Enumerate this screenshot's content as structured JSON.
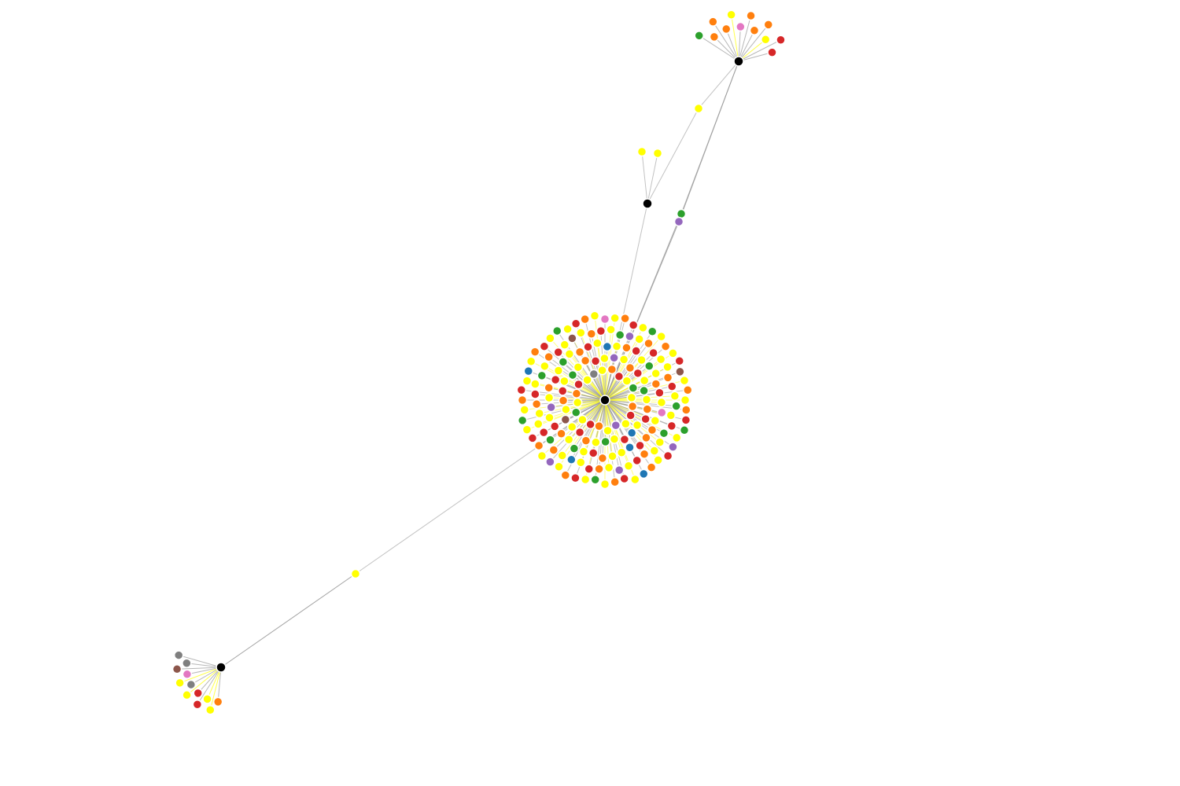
{
  "diagram": {
    "type": "force-directed-network",
    "background": "#ffffff",
    "hub_color": "#000000",
    "link_color": "#999999",
    "highlight_link_color": "#ffff00",
    "palette": {
      "yellow": "#ffff00",
      "orange": "#ff7f0e",
      "red": "#d62728",
      "green": "#2ca02c",
      "blue": "#1f77b4",
      "purple": "#9467bd",
      "pink": "#e377c2",
      "brown": "#8c564b",
      "gray": "#7f7f7f"
    },
    "hubs": [
      {
        "id": "hub-center",
        "leaf_colors": [
          "yellow",
          "orange",
          "red",
          "green",
          "yellow",
          "purple",
          "red",
          "yellow",
          "orange",
          "blue",
          "yellow",
          "red",
          "orange",
          "yellow",
          "green",
          "yellow",
          "red",
          "orange",
          "yellow",
          "purple",
          "yellow",
          "orange",
          "red",
          "yellow",
          "green",
          "yellow",
          "orange",
          "red",
          "yellow",
          "blue",
          "yellow",
          "orange",
          "red",
          "yellow",
          "green",
          "yellow",
          "red",
          "orange",
          "yellow",
          "pink",
          "yellow",
          "orange",
          "red",
          "yellow",
          "green",
          "yellow",
          "orange",
          "yellow",
          "red",
          "brown",
          "yellow",
          "orange",
          "red",
          "green",
          "yellow",
          "yellow",
          "orange",
          "red",
          "yellow",
          "purple",
          "yellow",
          "orange",
          "red",
          "yellow",
          "blue",
          "yellow",
          "orange",
          "green",
          "red",
          "yellow",
          "yellow",
          "orange",
          "red",
          "yellow",
          "green",
          "yellow",
          "orange",
          "red",
          "yellow",
          "brown",
          "yellow",
          "orange",
          "red",
          "yellow",
          "green",
          "purple",
          "yellow",
          "orange",
          "red",
          "yellow",
          "yellow",
          "orange",
          "red",
          "yellow",
          "green",
          "yellow",
          "orange",
          "red",
          "blue",
          "yellow",
          "yellow",
          "orange",
          "red",
          "yellow",
          "green",
          "yellow",
          "orange",
          "red",
          "yellow",
          "purple",
          "yellow",
          "orange",
          "red",
          "yellow",
          "green",
          "yellow",
          "orange",
          "red",
          "yellow",
          "blue",
          "yellow",
          "orange",
          "red",
          "yellow",
          "green",
          "yellow",
          "orange",
          "red",
          "yellow",
          "pink",
          "yellow",
          "orange",
          "red",
          "yellow",
          "green",
          "yellow",
          "orange",
          "red",
          "yellow",
          "brown",
          "yellow",
          "orange",
          "red",
          "yellow",
          "green",
          "yellow",
          "orange",
          "red",
          "yellow",
          "purple",
          "yellow",
          "orange",
          "red",
          "yellow",
          "green",
          "yellow",
          "orange",
          "red",
          "yellow",
          "blue",
          "yellow",
          "orange",
          "red",
          "yellow",
          "green",
          "yellow",
          "orange",
          "red",
          "yellow",
          "gray",
          "yellow",
          "orange",
          "red",
          "yellow",
          "green",
          "yellow",
          "orange",
          "red",
          "yellow",
          "purple",
          "yellow",
          "orange",
          "red",
          "yellow",
          "green",
          "yellow",
          "orange",
          "red",
          "yellow"
        ]
      },
      {
        "id": "hub-top-right",
        "leaf_colors": [
          "green",
          "orange",
          "orange",
          "orange",
          "yellow",
          "pink",
          "orange",
          "orange",
          "orange",
          "yellow",
          "red",
          "red"
        ]
      },
      {
        "id": "hub-middle",
        "leaf_colors": [
          "yellow",
          "yellow"
        ]
      },
      {
        "id": "hub-bottom-left",
        "leaf_colors": [
          "gray",
          "gray",
          "brown",
          "pink",
          "yellow",
          "gray",
          "yellow",
          "red",
          "red",
          "yellow",
          "yellow",
          "orange"
        ]
      }
    ],
    "bridge_nodes": [
      {
        "id": "bridge-yellow-top",
        "color": "yellow"
      },
      {
        "id": "bridge-green",
        "color": "green"
      },
      {
        "id": "bridge-purple",
        "color": "purple"
      },
      {
        "id": "bridge-yellow-bottom",
        "color": "yellow"
      }
    ]
  }
}
